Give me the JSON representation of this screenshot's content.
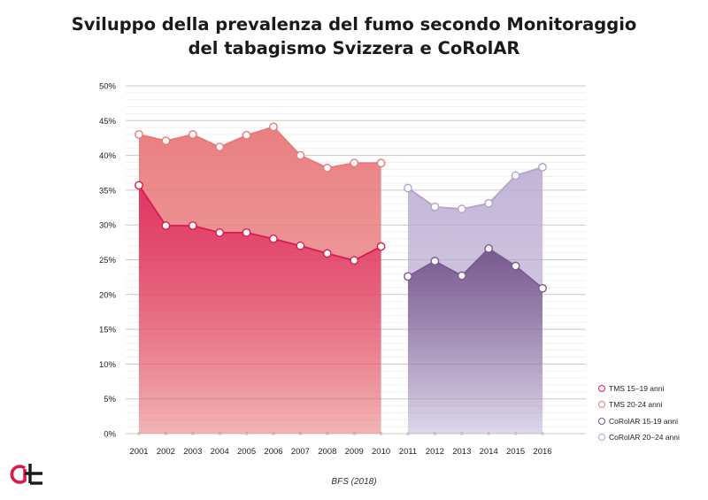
{
  "title_line1": "Sviluppo della prevalenza del fumo secondo Monitoraggio",
  "title_line2": "del tabagismo Svizzera e CoRolAR",
  "source": "BFS (2018)",
  "chart_data": {
    "type": "line",
    "title": "Sviluppo della prevalenza del fumo secondo Monitoraggio del tabagismo Svizzera e CoRolAR",
    "x": [
      "2001",
      "2002",
      "2003",
      "2004",
      "2005",
      "2006",
      "2007",
      "2008",
      "2009",
      "2010",
      "2011",
      "2012",
      "2013",
      "2014",
      "2015",
      "2016"
    ],
    "yticks": [
      "0%",
      "5%",
      "10%",
      "15%",
      "20%",
      "25%",
      "30%",
      "35%",
      "40%",
      "45%",
      "50%"
    ],
    "ylim": [
      0,
      50
    ],
    "grid": true,
    "legend_position": "bottom-right",
    "series": [
      {
        "name": "TMS 15–19 anni",
        "color": "#d81b4a",
        "x": [
          "2001",
          "2002",
          "2003",
          "2004",
          "2005",
          "2006",
          "2007",
          "2008",
          "2009",
          "2010"
        ],
        "values": [
          35.7,
          29.9,
          29.9,
          28.9,
          28.9,
          28.0,
          27.0,
          25.9,
          24.9,
          26.9
        ]
      },
      {
        "name": "TMS 20-24 anni",
        "color": "#e8787a",
        "x": [
          "2001",
          "2002",
          "2003",
          "2004",
          "2005",
          "2006",
          "2007",
          "2008",
          "2009",
          "2010"
        ],
        "values": [
          43.0,
          42.1,
          43.0,
          41.2,
          42.9,
          44.1,
          40.0,
          38.2,
          38.9,
          38.9
        ]
      },
      {
        "name": "CoRolAR 15-19 anni",
        "color": "#7a5a8e",
        "x": [
          "2011",
          "2012",
          "2013",
          "2014",
          "2015",
          "2016"
        ],
        "values": [
          22.6,
          24.8,
          22.7,
          26.6,
          24.1,
          20.9
        ]
      },
      {
        "name": "CoRolAR 20–24 anni",
        "color": "#b3a3cc",
        "x": [
          "2011",
          "2012",
          "2013",
          "2014",
          "2015",
          "2016"
        ],
        "values": [
          35.3,
          32.6,
          32.3,
          33.1,
          37.1,
          38.3
        ]
      }
    ]
  }
}
